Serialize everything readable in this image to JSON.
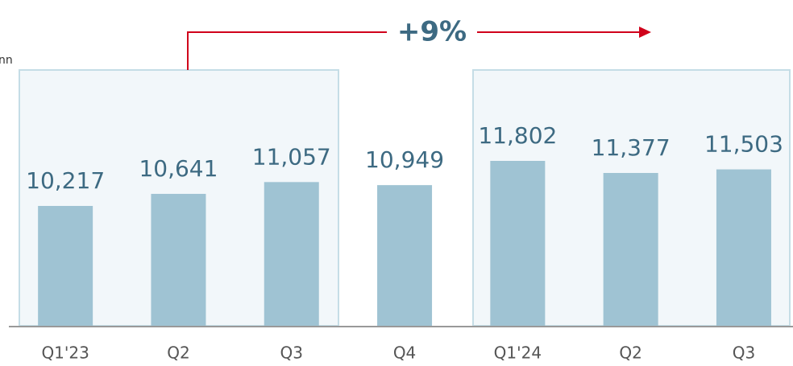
{
  "chart_data": {
    "type": "bar",
    "unit_label": "nn",
    "annotation": "+9%",
    "categories": [
      "Q1'23",
      "Q2",
      "Q3",
      "Q4",
      "Q1'24",
      "Q2",
      "Q3"
    ],
    "values": [
      10217,
      10641,
      11057,
      10949,
      11802,
      11377,
      11503
    ],
    "value_labels": [
      "10,217",
      "10,641",
      "11,057",
      "10,949",
      "11,802",
      "11,377",
      "11,503"
    ],
    "color": "#9fc3d3",
    "ylim": [
      6000,
      15000
    ]
  }
}
